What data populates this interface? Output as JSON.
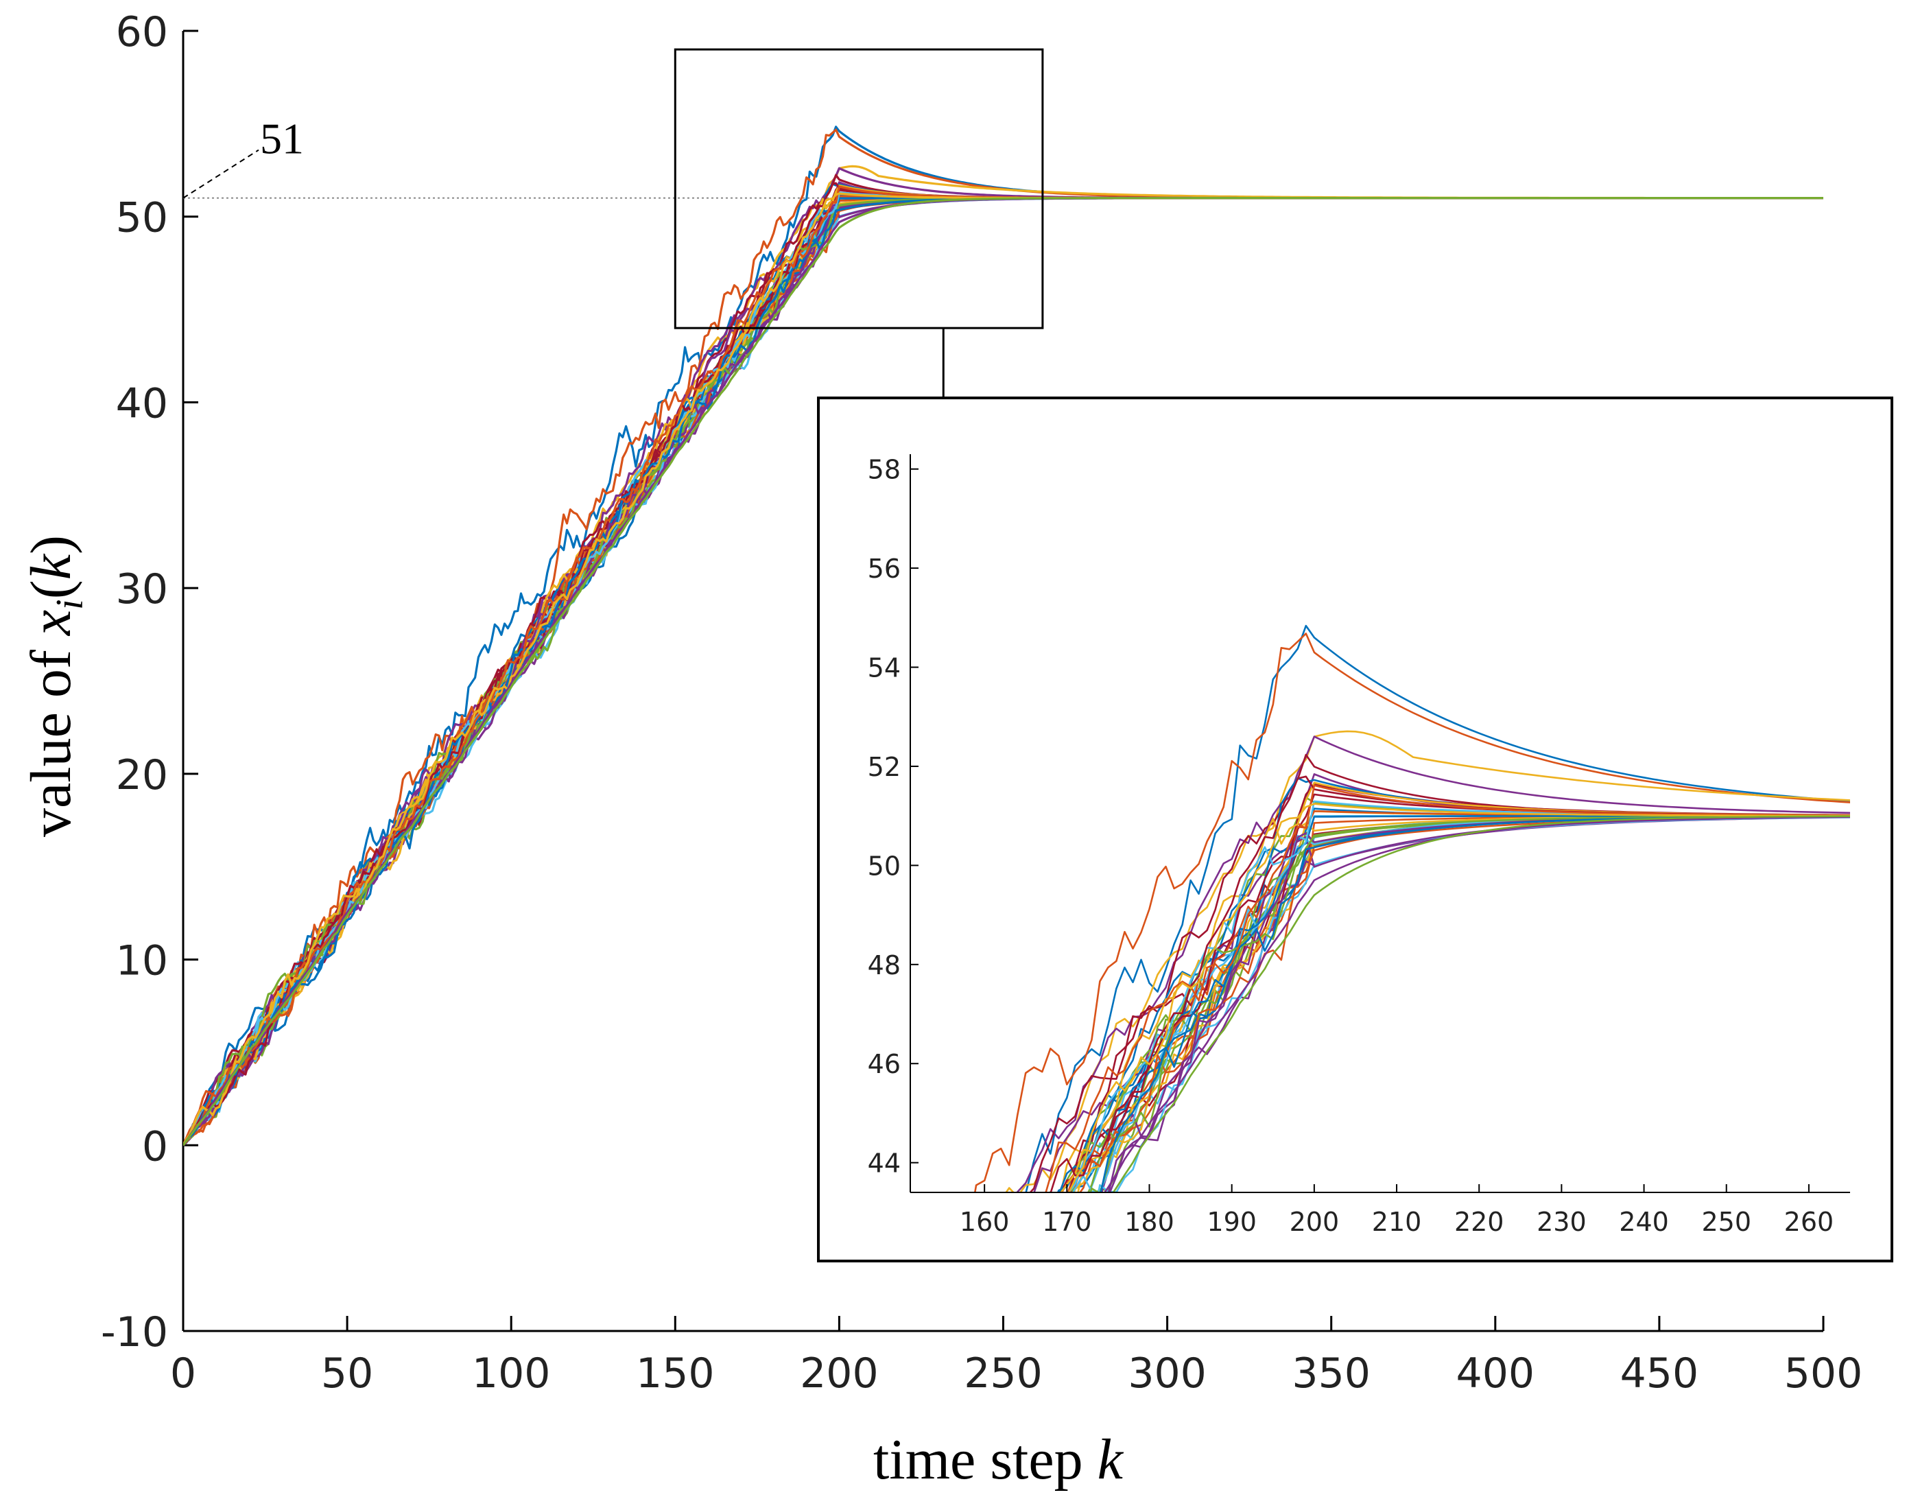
{
  "chart_data": {
    "type": "line",
    "description_labels": {
      "ylabel_prefix": "value of ",
      "ylabel_var": "x",
      "ylabel_sub": "i",
      "ylabel_paren_open": "(",
      "ylabel_arg": "k",
      "ylabel_paren_close": ")",
      "xlabel_text": "time step ",
      "xlabel_var": "k"
    },
    "xlim": [
      0,
      500
    ],
    "ylim": [
      -10,
      60
    ],
    "xticks": [
      0,
      50,
      100,
      150,
      200,
      250,
      300,
      350,
      400,
      450,
      500
    ],
    "yticks": [
      -10,
      0,
      10,
      20,
      30,
      40,
      50,
      60
    ],
    "reference_line": {
      "y": 51,
      "label": "51"
    },
    "consensus_value": 51,
    "switch_step": 200,
    "end_step": 500,
    "num_agents": 40,
    "peak_examples": [
      {
        "name": "highest",
        "peak": 54.6,
        "final": 51.0
      },
      {
        "name": "second",
        "peak": 54.3,
        "final": 51.0
      }
    ],
    "series_colors": [
      "#0072BD",
      "#D95319",
      "#EDB120",
      "#7E2F8E",
      "#77AC30",
      "#4DBEEE",
      "#A2142F"
    ],
    "zoom_box": {
      "xlim": [
        150,
        262
      ],
      "ylim": [
        44,
        59
      ]
    },
    "inset": {
      "xlim": [
        151,
        265
      ],
      "ylim": [
        43.4,
        58.3
      ],
      "xticks": [
        160,
        170,
        180,
        190,
        200,
        210,
        220,
        230,
        240,
        250,
        260
      ],
      "yticks": [
        44,
        46,
        48,
        50,
        52,
        54,
        56,
        58
      ]
    }
  }
}
